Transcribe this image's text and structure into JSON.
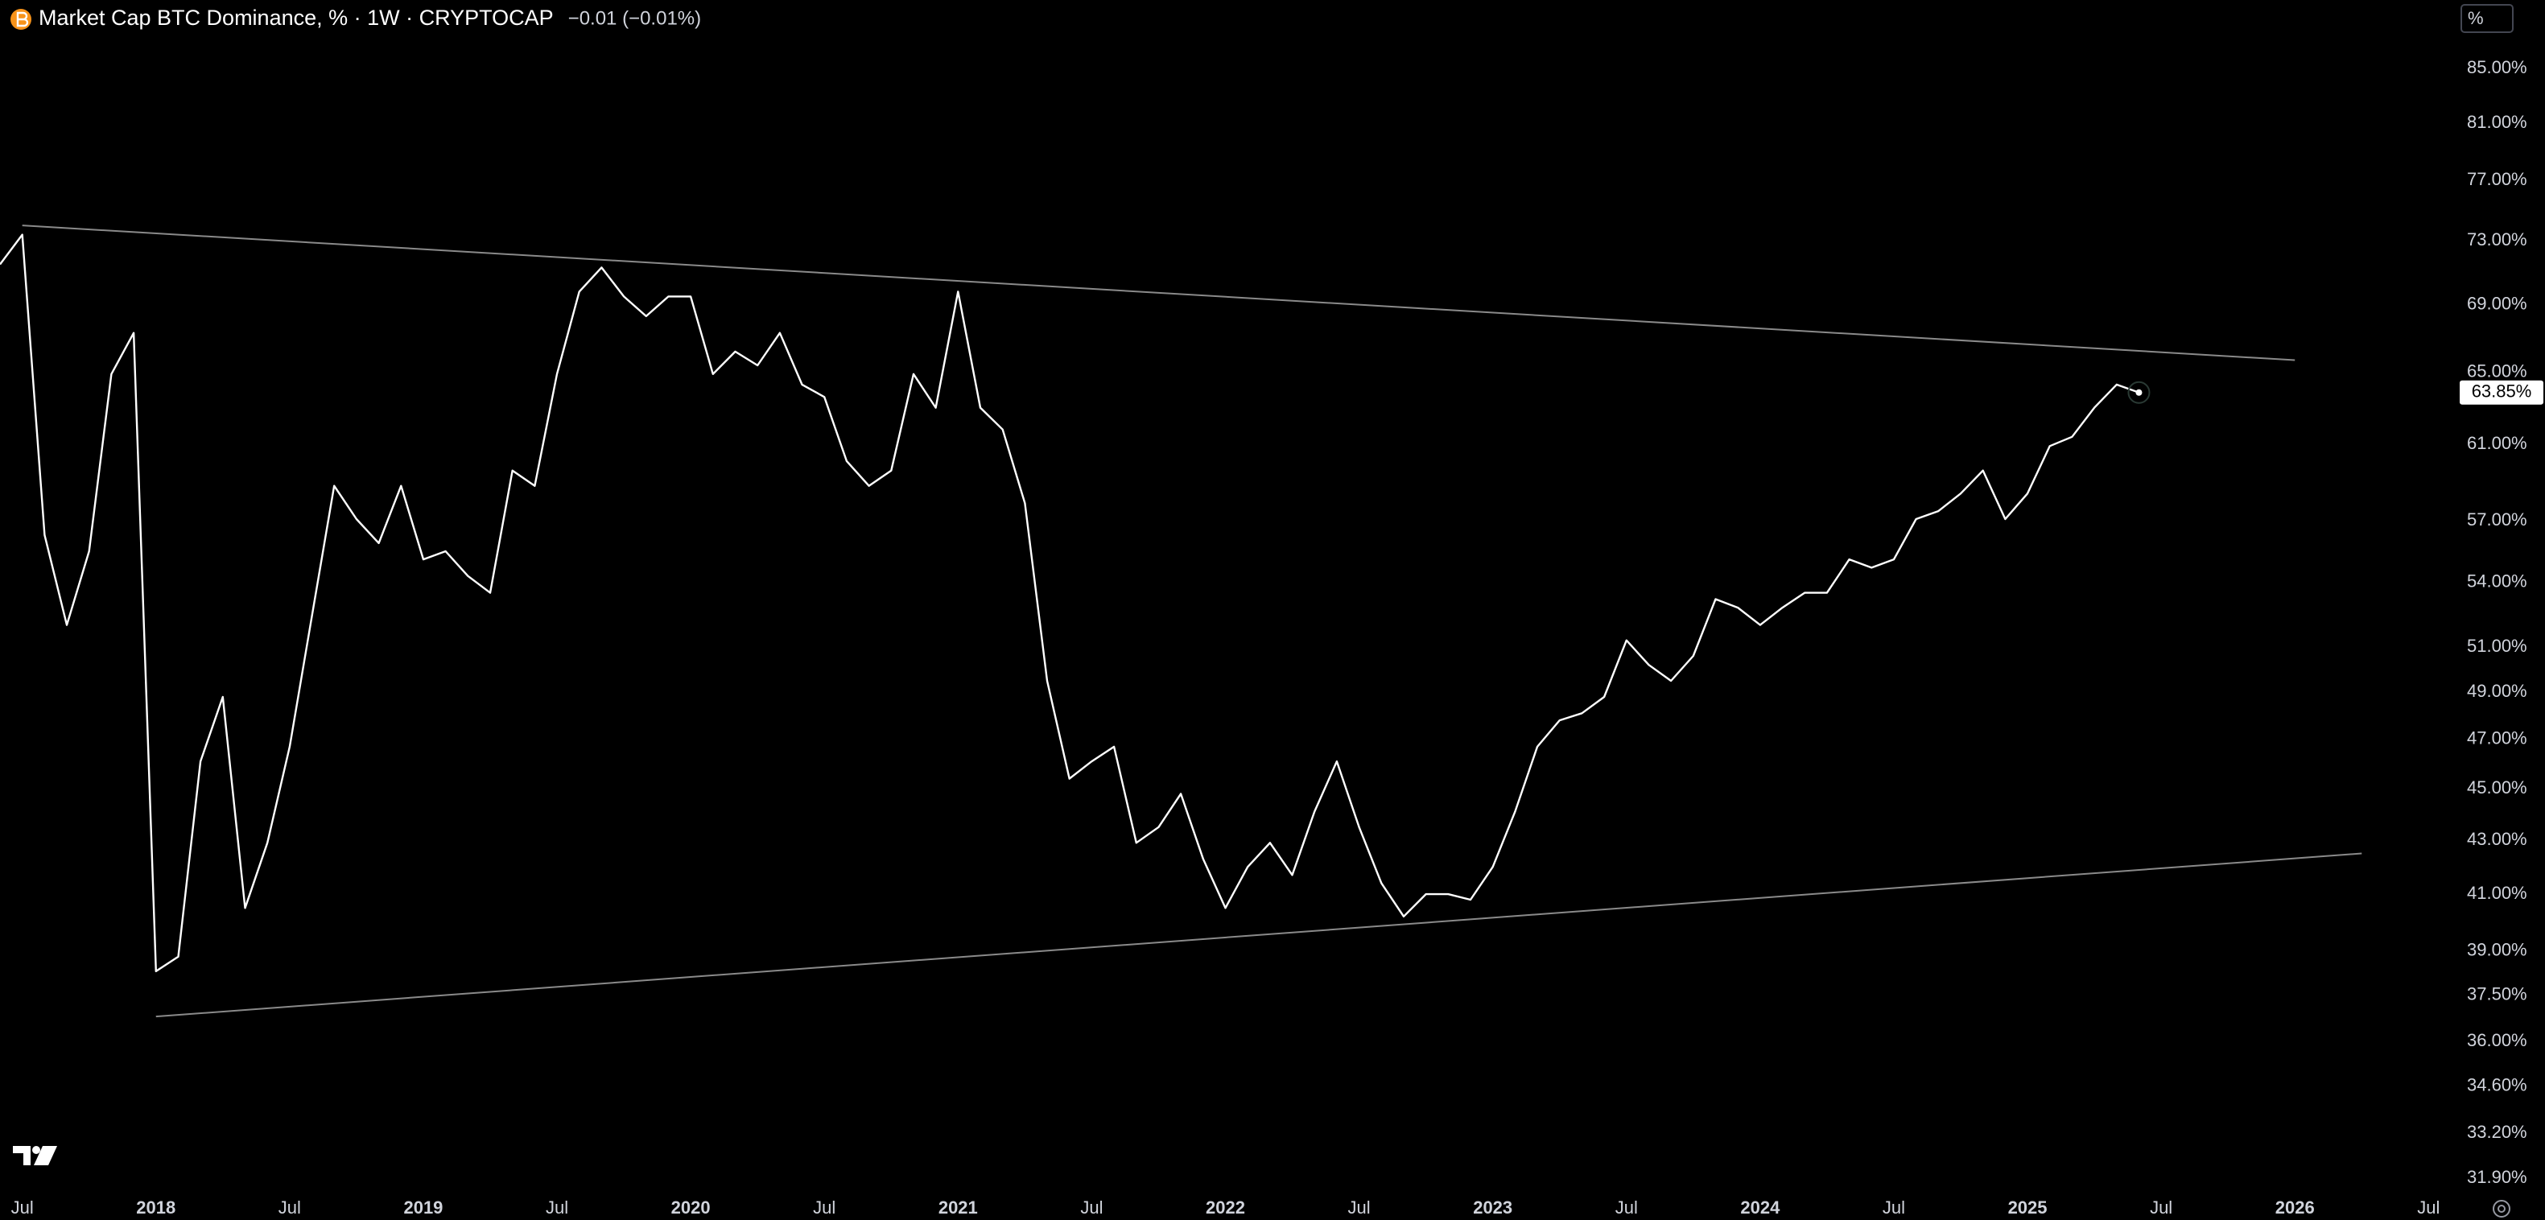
{
  "chart_data": {
    "type": "line",
    "title": "Market Cap BTC Dominance, % · 1W · CRYPTOCAP",
    "subtitle": "−0.01 (−0.01%)",
    "scale_label": "%",
    "log_scale": true,
    "grid": false,
    "color": "#ffffff",
    "x": [
      "2017-06",
      "2017-07",
      "2017-08",
      "2017-09",
      "2017-10",
      "2017-11",
      "2017-12",
      "2018-01",
      "2018-02",
      "2018-03",
      "2018-04",
      "2018-05",
      "2018-06",
      "2018-07",
      "2018-08",
      "2018-09",
      "2018-10",
      "2018-11",
      "2018-12",
      "2019-01",
      "2019-02",
      "2019-03",
      "2019-04",
      "2019-05",
      "2019-06",
      "2019-07",
      "2019-08",
      "2019-09",
      "2019-10",
      "2019-11",
      "2019-12",
      "2020-01",
      "2020-02",
      "2020-03",
      "2020-04",
      "2020-05",
      "2020-06",
      "2020-07",
      "2020-08",
      "2020-09",
      "2020-10",
      "2020-11",
      "2020-12",
      "2021-01",
      "2021-02",
      "2021-03",
      "2021-04",
      "2021-05",
      "2021-06",
      "2021-07",
      "2021-08",
      "2021-09",
      "2021-10",
      "2021-11",
      "2021-12",
      "2022-01",
      "2022-02",
      "2022-03",
      "2022-04",
      "2022-05",
      "2022-06",
      "2022-07",
      "2022-08",
      "2022-09",
      "2022-10",
      "2022-11",
      "2022-12",
      "2023-01",
      "2023-02",
      "2023-03",
      "2023-04",
      "2023-05",
      "2023-06",
      "2023-07",
      "2023-08",
      "2023-09",
      "2023-10",
      "2023-11",
      "2023-12",
      "2024-01",
      "2024-02",
      "2024-03",
      "2024-04",
      "2024-05",
      "2024-06",
      "2024-07",
      "2024-08",
      "2024-09",
      "2024-10",
      "2024-11",
      "2024-12",
      "2025-01",
      "2025-02",
      "2025-03",
      "2025-04",
      "2025-05",
      "2025-06"
    ],
    "values": [
      71.5,
      73.4,
      56.3,
      52.0,
      55.5,
      64.9,
      67.3,
      38.3,
      38.8,
      46.1,
      48.8,
      40.5,
      42.9,
      46.7,
      52.4,
      58.8,
      57.1,
      55.9,
      58.8,
      55.1,
      55.5,
      54.3,
      53.5,
      59.6,
      58.8,
      64.9,
      69.8,
      71.3,
      69.5,
      68.3,
      69.5,
      69.5,
      64.9,
      66.2,
      65.4,
      67.3,
      64.3,
      63.6,
      60.1,
      58.8,
      59.6,
      64.9,
      63.0,
      69.8,
      63.0,
      61.8,
      57.9,
      49.5,
      45.4,
      46.1,
      46.7,
      42.9,
      43.5,
      44.8,
      42.3,
      40.5,
      42.0,
      42.9,
      41.7,
      44.1,
      46.1,
      43.5,
      41.4,
      40.2,
      41.0,
      41.0,
      40.8,
      42.0,
      44.1,
      46.7,
      47.8,
      48.1,
      48.8,
      51.3,
      50.2,
      49.5,
      50.6,
      53.2,
      52.8,
      52.0,
      52.8,
      53.5,
      53.5,
      55.1,
      54.7,
      55.1,
      57.1,
      57.5,
      58.4,
      59.6,
      57.1,
      58.4,
      60.9,
      61.4,
      63.0,
      64.3,
      63.85
    ],
    "last_value": {
      "value": 63.85,
      "label": "63.85%"
    },
    "trendlines": [
      {
        "color": "#8a8a8a",
        "x": [
          "2017-07",
          "2026-01"
        ],
        "y": [
          74.0,
          65.7
        ]
      },
      {
        "color": "#8a8a8a",
        "x": [
          "2018-01",
          "2026-04"
        ],
        "y": [
          36.8,
          42.5
        ]
      }
    ],
    "xlim": [
      "2017-06",
      "2026-08"
    ],
    "ylim": [
      31.5,
      90.3
    ],
    "xticks": [
      {
        "value": "2017-07",
        "label": "Jul"
      },
      {
        "value": "2018-01",
        "label": "2018"
      },
      {
        "value": "2018-07",
        "label": "Jul"
      },
      {
        "value": "2019-01",
        "label": "2019"
      },
      {
        "value": "2019-07",
        "label": "Jul"
      },
      {
        "value": "2020-01",
        "label": "2020"
      },
      {
        "value": "2020-07",
        "label": "Jul"
      },
      {
        "value": "2021-01",
        "label": "2021"
      },
      {
        "value": "2021-07",
        "label": "Jul"
      },
      {
        "value": "2022-01",
        "label": "2022"
      },
      {
        "value": "2022-07",
        "label": "Jul"
      },
      {
        "value": "2023-01",
        "label": "2023"
      },
      {
        "value": "2023-07",
        "label": "Jul"
      },
      {
        "value": "2024-01",
        "label": "2024"
      },
      {
        "value": "2024-07",
        "label": "Jul"
      },
      {
        "value": "2025-01",
        "label": "2025"
      },
      {
        "value": "2025-07",
        "label": "Jul"
      },
      {
        "value": "2026-01",
        "label": "2026"
      },
      {
        "value": "2026-07",
        "label": "Jul"
      }
    ],
    "yticks": [
      {
        "value": 85,
        "label": "85.00%"
      },
      {
        "value": 81,
        "label": "81.00%"
      },
      {
        "value": 77,
        "label": "77.00%"
      },
      {
        "value": 73,
        "label": "73.00%"
      },
      {
        "value": 69,
        "label": "69.00%"
      },
      {
        "value": 65,
        "label": "65.00%"
      },
      {
        "value": 61,
        "label": "61.00%"
      },
      {
        "value": 57,
        "label": "57.00%"
      },
      {
        "value": 54,
        "label": "54.00%"
      },
      {
        "value": 51,
        "label": "51.00%"
      },
      {
        "value": 49,
        "label": "49.00%"
      },
      {
        "value": 47,
        "label": "47.00%"
      },
      {
        "value": 45,
        "label": "45.00%"
      },
      {
        "value": 43,
        "label": "43.00%"
      },
      {
        "value": 41,
        "label": "41.00%"
      },
      {
        "value": 39,
        "label": "39.00%"
      },
      {
        "value": 37.5,
        "label": "37.50%"
      },
      {
        "value": 36,
        "label": "36.00%"
      },
      {
        "value": 34.6,
        "label": "34.60%"
      },
      {
        "value": 33.2,
        "label": "33.20%"
      },
      {
        "value": 31.9,
        "label": "31.90%"
      }
    ]
  }
}
